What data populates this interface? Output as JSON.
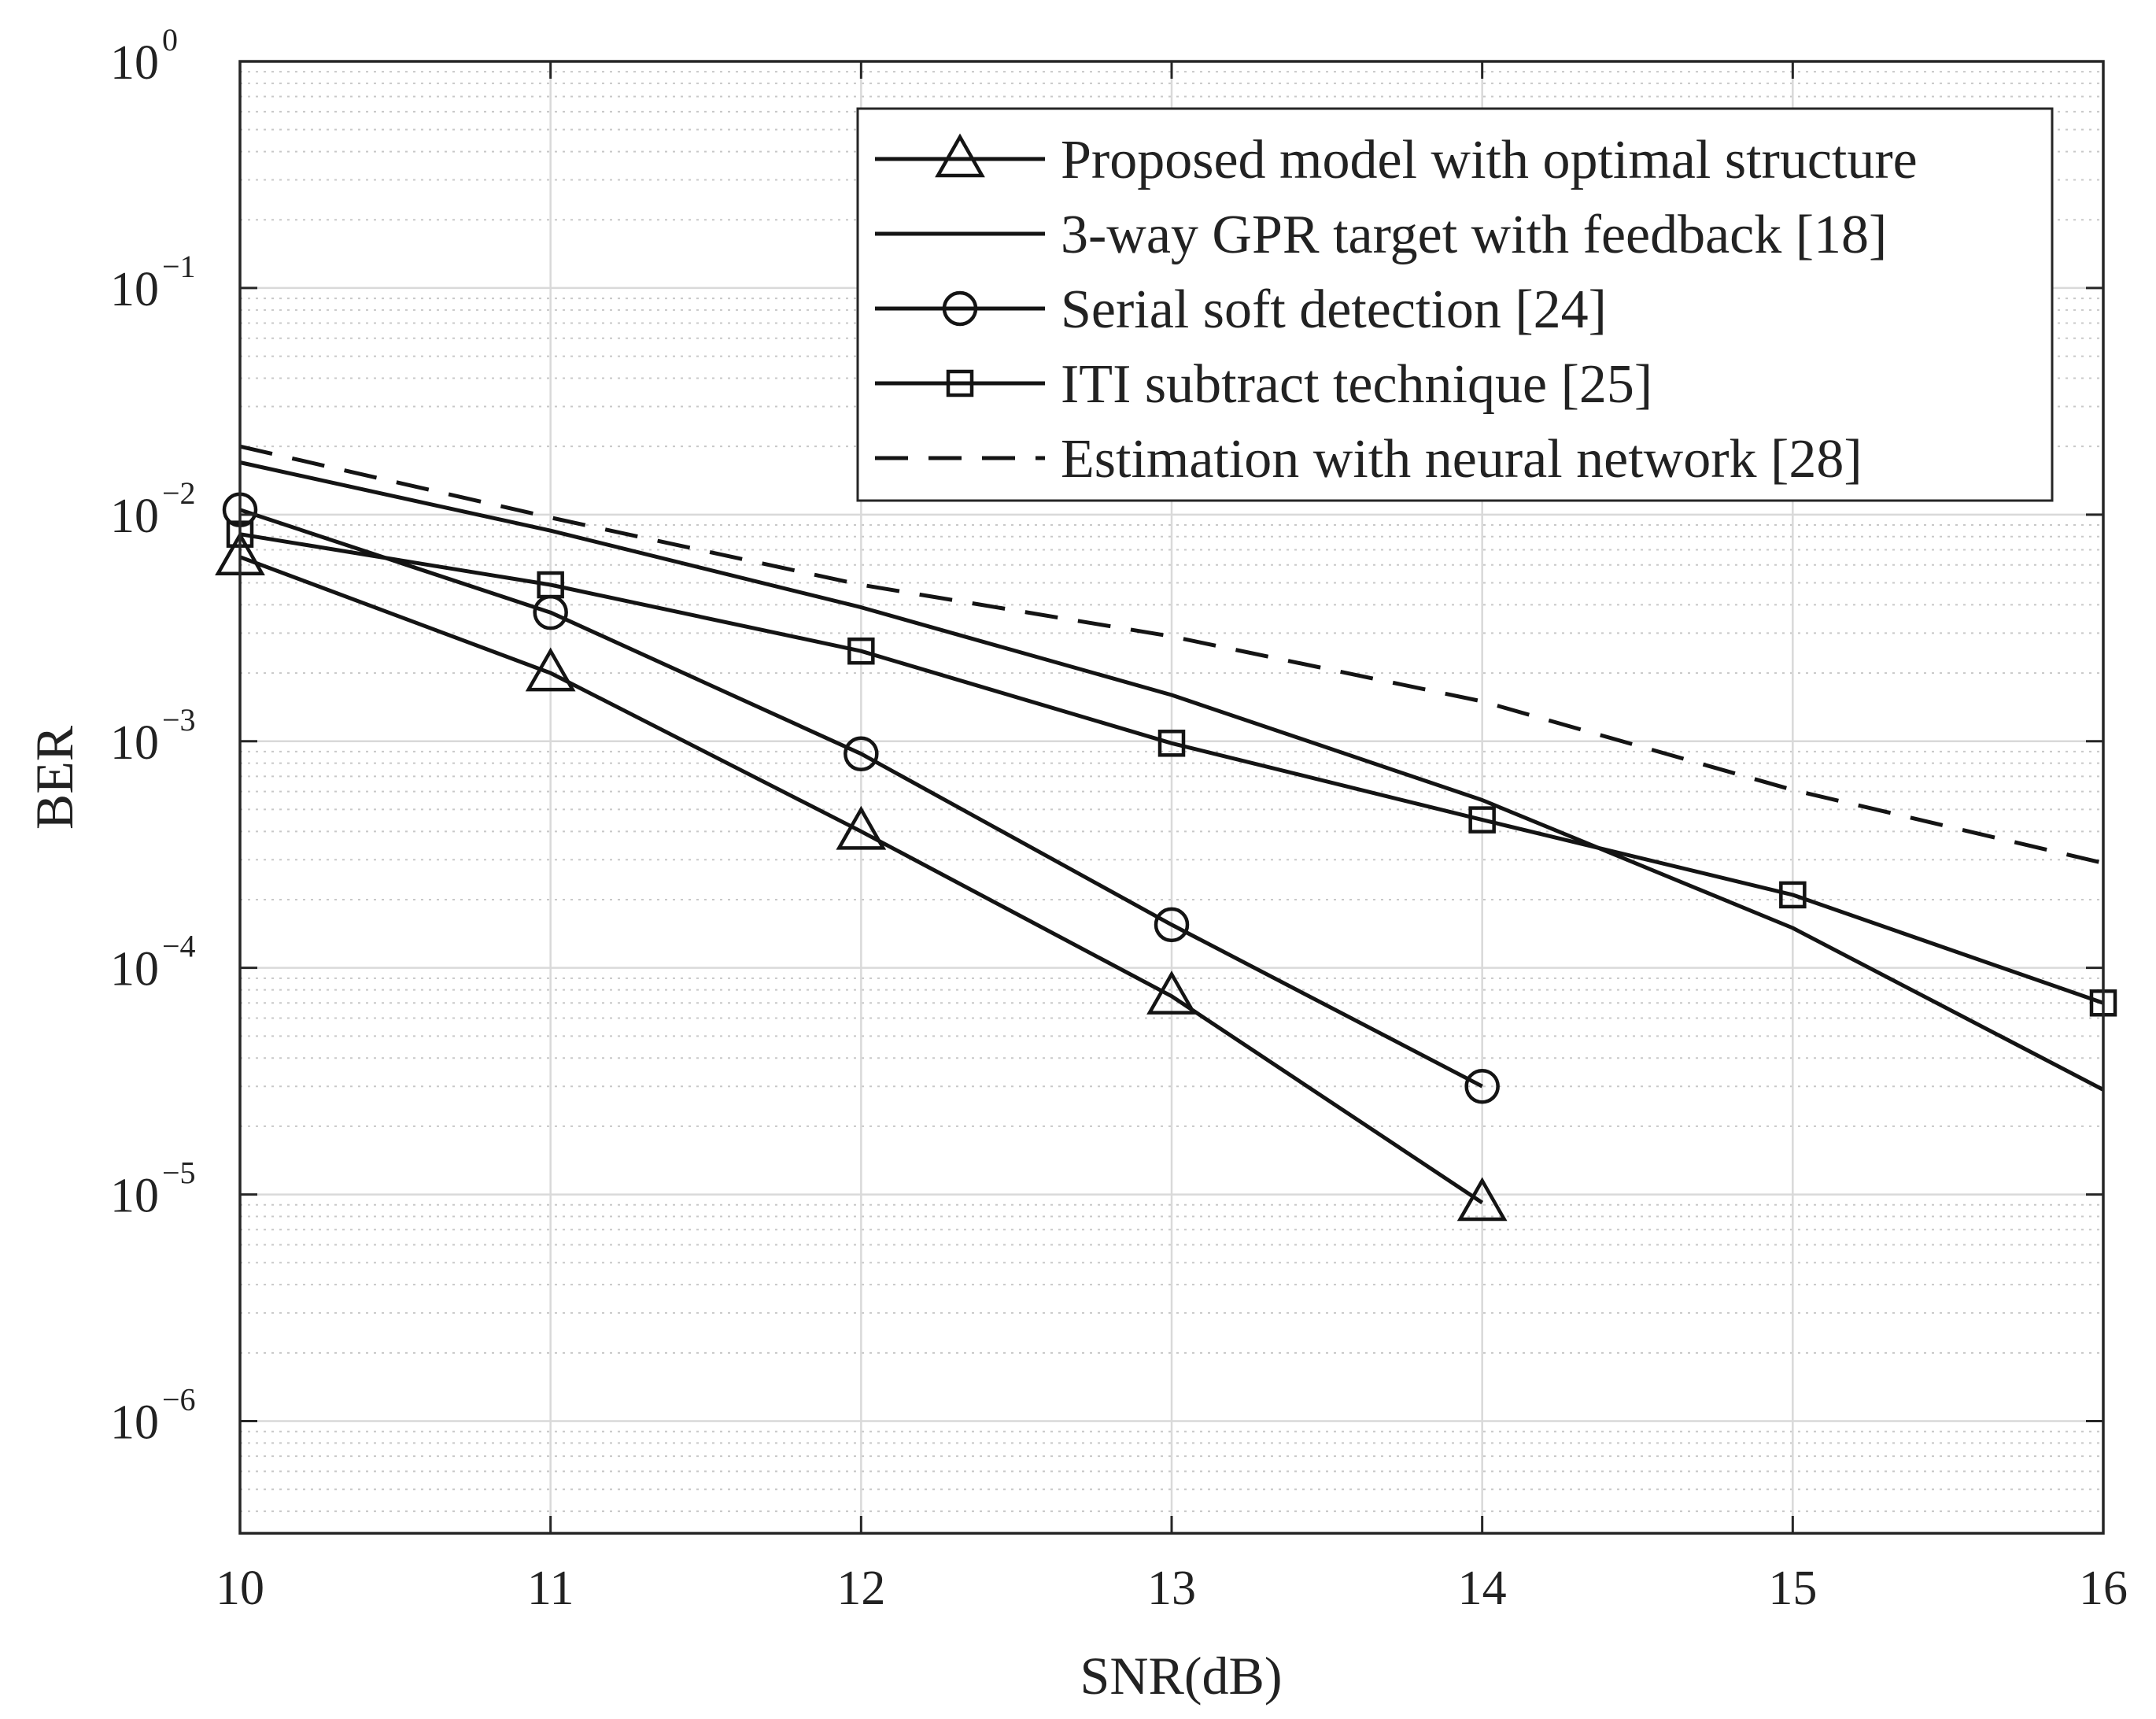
{
  "colors": {
    "background": "#ffffff",
    "axis": "#262626",
    "grid_major": "#d9d9d9",
    "grid_minor": "#c8c8c8",
    "series": "#141414"
  },
  "chart_data": {
    "type": "line",
    "title": "",
    "xlabel": "SNR(dB)",
    "ylabel": "BER",
    "xlim": [
      10,
      16
    ],
    "ylim": [
      3.2e-07,
      1
    ],
    "yscale": "log",
    "grid": true,
    "legend_position": "top-right",
    "x_ticks": [
      {
        "value": 10,
        "label": "10"
      },
      {
        "value": 11,
        "label": "11"
      },
      {
        "value": 12,
        "label": "12"
      },
      {
        "value": 13,
        "label": "13"
      },
      {
        "value": 14,
        "label": "14"
      },
      {
        "value": 15,
        "label": "15"
      },
      {
        "value": 16,
        "label": "16"
      }
    ],
    "y_ticks": [
      {
        "value": 1,
        "base": "10",
        "exp": "0"
      },
      {
        "value": 0.1,
        "base": "10",
        "exp": "−1"
      },
      {
        "value": 0.01,
        "base": "10",
        "exp": "−2"
      },
      {
        "value": 0.001,
        "base": "10",
        "exp": "−3"
      },
      {
        "value": 0.0001,
        "base": "10",
        "exp": "−4"
      },
      {
        "value": 1e-05,
        "base": "10",
        "exp": "−5"
      },
      {
        "value": 1e-06,
        "base": "10",
        "exp": "−6"
      }
    ],
    "series": [
      {
        "name": "Proposed model with optimal structure",
        "marker": "triangle",
        "dash": "solid",
        "x": [
          10,
          11,
          12,
          13,
          14
        ],
        "y": [
          0.0065,
          0.002,
          0.0004,
          7.5e-05,
          9.2e-06
        ]
      },
      {
        "name": "3-way GPR target with feedback [18]",
        "marker": "none",
        "dash": "solid",
        "x": [
          10,
          11,
          12,
          13,
          14,
          15,
          16
        ],
        "y": [
          0.017,
          0.0085,
          0.0039,
          0.0016,
          0.00055,
          0.00015,
          2.9e-05
        ]
      },
      {
        "name": "Serial soft detection [24]",
        "marker": "circle",
        "dash": "solid",
        "x": [
          10,
          11,
          12,
          13,
          14
        ],
        "y": [
          0.0105,
          0.0037,
          0.00088,
          0.000155,
          3e-05
        ]
      },
      {
        "name": "ITI subtract technique [25]",
        "marker": "square",
        "dash": "solid",
        "x": [
          10,
          11,
          12,
          13,
          14,
          15,
          16
        ],
        "y": [
          0.0082,
          0.0049,
          0.0025,
          0.00098,
          0.00045,
          0.00021,
          7e-05
        ]
      },
      {
        "name": "Estimation with neural network [28]",
        "marker": "none",
        "dash": "dashed",
        "x": [
          10,
          11,
          12,
          13,
          14,
          15,
          16
        ],
        "y": [
          0.02,
          0.0097,
          0.0049,
          0.0029,
          0.0015,
          0.00061,
          0.00029
        ]
      }
    ]
  }
}
